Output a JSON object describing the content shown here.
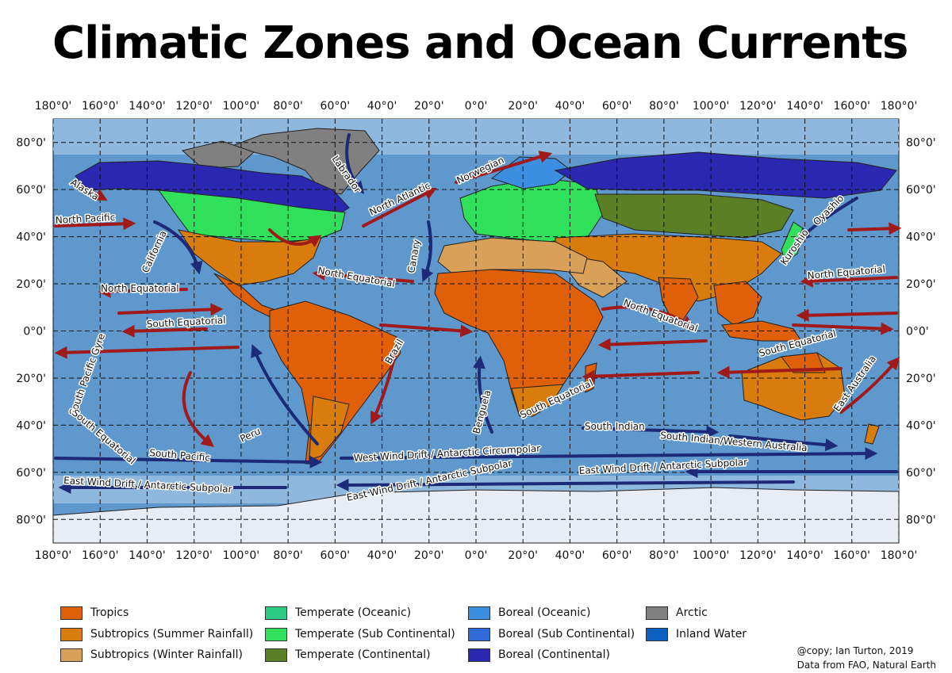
{
  "title": "Climatic Zones and Ocean Currents",
  "axes": {
    "lon_labels": [
      "180°0'",
      "160°0'",
      "140°0'",
      "120°0'",
      "100°0'",
      "80°0'",
      "60°0'",
      "40°0'",
      "20°0'",
      "0°0'",
      "20°0'",
      "40°0'",
      "60°0'",
      "80°0'",
      "100°0'",
      "120°0'",
      "140°0'",
      "160°0'",
      "180°0'"
    ],
    "lat_labels": [
      "80°0'",
      "60°0'",
      "40°0'",
      "20°0'",
      "0°0'",
      "20°0'",
      "40°0'",
      "60°0'",
      "80°0'"
    ],
    "lon_range": [
      -180,
      180
    ],
    "lat_range": [
      -90,
      90
    ],
    "grid": true
  },
  "currents": [
    {
      "label": "Alaska",
      "warm": true
    },
    {
      "label": "North Pacific",
      "warm": true
    },
    {
      "label": "California",
      "warm": false
    },
    {
      "label": "North Equatorial",
      "warm": true
    },
    {
      "label": "South Equatorial",
      "warm": true
    },
    {
      "label": "South Pacific Gyre",
      "warm": true
    },
    {
      "label": "South Equatorial",
      "warm": true
    },
    {
      "label": "Peru",
      "warm": false
    },
    {
      "label": "South Pacific",
      "warm": false
    },
    {
      "label": "East Wind Drift / Antarctic Subpolar",
      "warm": false
    },
    {
      "label": "Labrador",
      "warm": false
    },
    {
      "label": "North Atlantic",
      "warm": true
    },
    {
      "label": "Norwegian",
      "warm": true
    },
    {
      "label": "Canary",
      "warm": false
    },
    {
      "label": "North Equatorial",
      "warm": true
    },
    {
      "label": "Brazil",
      "warm": true
    },
    {
      "label": "Benguela",
      "warm": false
    },
    {
      "label": "West Wind Drift / Antarctic Circumpolar",
      "warm": false
    },
    {
      "label": "East Wind Drift / Antarctic Subpolar",
      "warm": false
    },
    {
      "label": "North Equatorial",
      "warm": true
    },
    {
      "label": "South Equatorial",
      "warm": true
    },
    {
      "label": "South Indian",
      "warm": false
    },
    {
      "label": "South Indian/Western Australia",
      "warm": false
    },
    {
      "label": "East Wind Drift / Antarctic Subpolar",
      "warm": false
    },
    {
      "label": "Kuroshio",
      "warm": true
    },
    {
      "label": "Oyashio",
      "warm": false
    },
    {
      "label": "North Equatorial",
      "warm": true
    },
    {
      "label": "South Equatorial",
      "warm": true
    },
    {
      "label": "East Australia",
      "warm": true
    }
  ],
  "legend": [
    {
      "label": "Tropics",
      "color": "#e0600a"
    },
    {
      "label": "Subtropics (Summer Rainfall)",
      "color": "#d97c0e"
    },
    {
      "label": "Subtropics (Winter Rainfall)",
      "color": "#d9a05a"
    },
    {
      "label": "Temperate (Oceanic)",
      "color": "#2dcc85"
    },
    {
      "label": "Temperate (Sub Continental)",
      "color": "#30e05a"
    },
    {
      "label": "Temperate (Continental)",
      "color": "#5a7f25"
    },
    {
      "label": "Boreal (Oceanic)",
      "color": "#3c8fe0"
    },
    {
      "label": "Boreal (Sub Continental)",
      "color": "#2e6bd8"
    },
    {
      "label": "Boreal (Continental)",
      "color": "#2a28b0"
    },
    {
      "label": "Arctic",
      "color": "#808080"
    },
    {
      "label": "Inland Water",
      "color": "#0a60c0"
    }
  ],
  "colors": {
    "ocean": "#5e98cc",
    "ocean_light": "#a9c9e6",
    "warm_current": "#a01a1a",
    "cold_current": "#1c2a78",
    "antarctica": "#e8ecf4"
  },
  "credits": {
    "line1": "@copy; Ian Turton, 2019",
    "line2": "Data from FAO, Natural Earth"
  }
}
